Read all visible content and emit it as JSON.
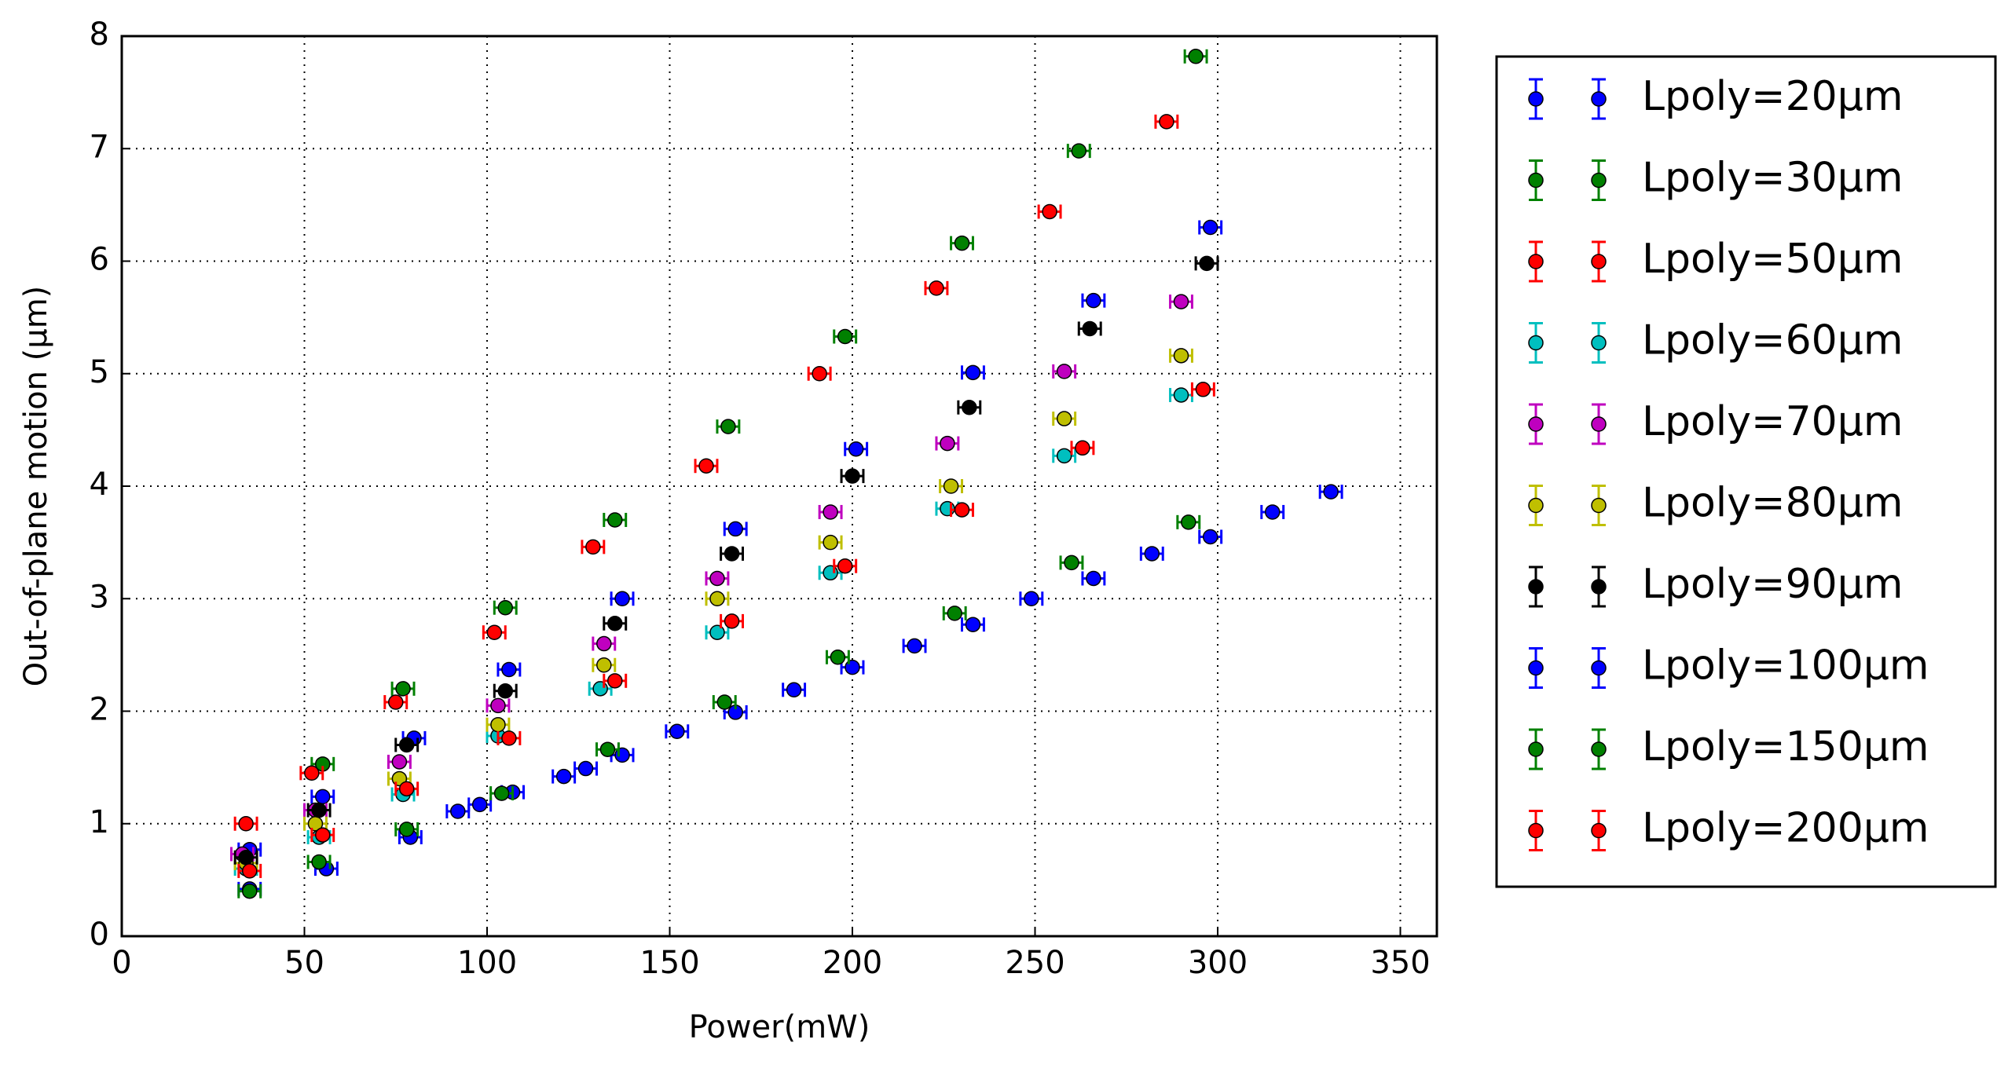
{
  "chart_data": {
    "type": "scatter",
    "xlabel": "Power(mW)",
    "ylabel": "Out-of-plane motion (µm)",
    "xlim": [
      0,
      360
    ],
    "ylim": [
      0,
      8
    ],
    "xticks": [
      0,
      50,
      100,
      150,
      200,
      250,
      300,
      350
    ],
    "yticks": [
      0,
      1,
      2,
      3,
      4,
      5,
      6,
      7,
      8
    ],
    "grid": true,
    "legend": "outside-right",
    "series": [
      {
        "name": "Lpoly=20µm",
        "color": "#0000ff",
        "xerr": 3,
        "x": [
          35,
          55,
          80,
          106,
          137,
          168,
          201,
          233,
          266,
          298
        ],
        "values": [
          0.77,
          1.24,
          1.76,
          2.37,
          3.0,
          3.62,
          4.33,
          5.01,
          5.65,
          6.3
        ]
      },
      {
        "name": "Lpoly=30µm",
        "color": "#008000",
        "xerr": 3,
        "x": [
          55,
          77,
          105,
          135,
          166,
          198,
          230,
          262,
          294
        ],
        "values": [
          1.53,
          2.2,
          2.92,
          3.7,
          4.53,
          5.33,
          6.16,
          6.98,
          7.82
        ]
      },
      {
        "name": "Lpoly=50µm",
        "color": "#ff0000",
        "xerr": 3,
        "x": [
          34,
          52,
          75,
          102,
          129,
          160,
          191,
          223,
          254,
          286
        ],
        "values": [
          1.0,
          1.45,
          2.08,
          2.7,
          3.46,
          4.18,
          5.0,
          5.76,
          6.44,
          7.24
        ]
      },
      {
        "name": "Lpoly=60µm",
        "color": "#00bfbf",
        "xerr": 3,
        "x": [
          34,
          54,
          77,
          103,
          131,
          163,
          194,
          226,
          258,
          290
        ],
        "values": [
          0.6,
          0.88,
          1.26,
          1.78,
          2.2,
          2.7,
          3.23,
          3.8,
          4.27,
          4.81
        ]
      },
      {
        "name": "Lpoly=70µm",
        "color": "#bf00bf",
        "xerr": 3,
        "x": [
          33,
          53,
          76,
          103,
          132,
          163,
          194,
          226,
          258,
          290
        ],
        "values": [
          0.73,
          1.12,
          1.55,
          2.05,
          2.6,
          3.18,
          3.77,
          4.38,
          5.02,
          5.64
        ]
      },
      {
        "name": "Lpoly=80µm",
        "color": "#bfbf00",
        "xerr": 3,
        "x": [
          34,
          53,
          76,
          103,
          132,
          163,
          194,
          227,
          258,
          290
        ],
        "values": [
          0.65,
          1.0,
          1.4,
          1.88,
          2.41,
          3.0,
          3.5,
          4.0,
          4.6,
          5.16
        ]
      },
      {
        "name": "Lpoly=90µm",
        "color": "#000000",
        "xerr": 3,
        "x": [
          34,
          54,
          78,
          105,
          135,
          167,
          200,
          232,
          265,
          297
        ],
        "values": [
          0.7,
          1.12,
          1.7,
          2.18,
          2.78,
          3.4,
          4.09,
          4.7,
          5.4,
          5.98
        ]
      },
      {
        "name": "Lpoly=100µm",
        "color": "#0000ff",
        "xerr": 3,
        "x": [
          35,
          56,
          79,
          92,
          98,
          107,
          121,
          127,
          137,
          152,
          168,
          184,
          200,
          217,
          233,
          249,
          266,
          282,
          298,
          315,
          331
        ],
        "values": [
          0.42,
          0.6,
          0.88,
          1.11,
          1.17,
          1.28,
          1.42,
          1.49,
          1.61,
          1.82,
          1.99,
          2.19,
          2.39,
          2.58,
          2.77,
          3.0,
          3.18,
          3.4,
          3.55,
          3.77,
          3.95
        ]
      },
      {
        "name": "Lpoly=150µm",
        "color": "#008000",
        "xerr": 3,
        "x": [
          35,
          54,
          78,
          104,
          133,
          165,
          196,
          228,
          260,
          292
        ],
        "values": [
          0.4,
          0.66,
          0.95,
          1.27,
          1.66,
          2.08,
          2.48,
          2.87,
          3.32,
          3.68
        ]
      },
      {
        "name": "Lpoly=200µm",
        "color": "#ff0000",
        "xerr": 3,
        "x": [
          35,
          55,
          78,
          106,
          135,
          167,
          198,
          230,
          263,
          296
        ],
        "values": [
          0.58,
          0.9,
          1.31,
          1.76,
          2.27,
          2.8,
          3.29,
          3.79,
          4.34,
          4.86
        ]
      }
    ]
  }
}
